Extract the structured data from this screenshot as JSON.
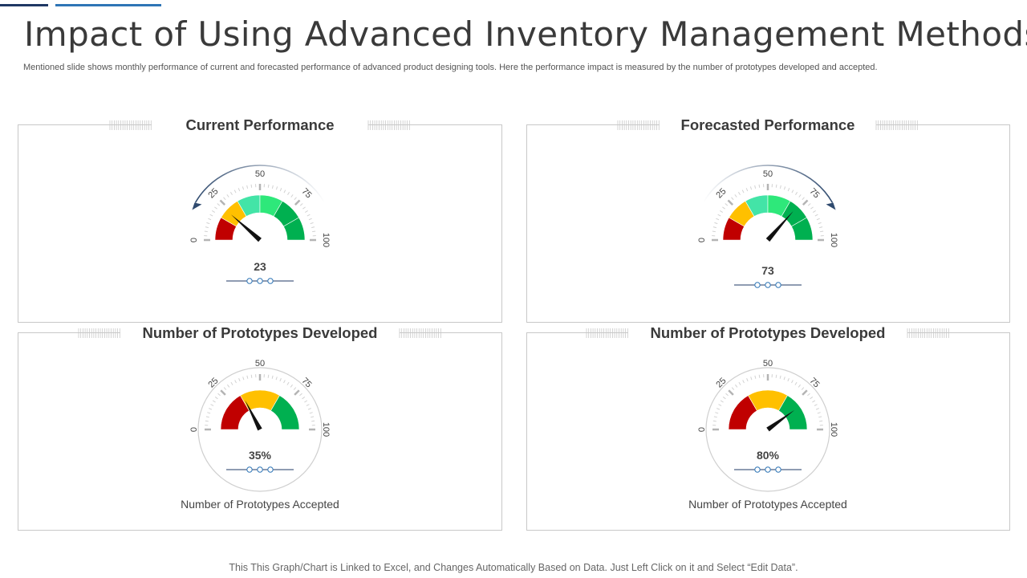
{
  "page": {
    "title": "Impact of Using Advanced Inventory Management Methods",
    "subtitle": "Mentioned slide shows monthly performance of current and forecasted performance of advanced product designing tools. Here the performance impact is measured by the number of prototypes  developed and accepted.",
    "footer": "This This Graph/Chart  is Linked to Excel, and Changes  Automatically Based on Data. Just Left Click on it and Select “Edit Data”.",
    "colors": {
      "accent_dark": "#1f3864",
      "accent_blue": "#2e75b6",
      "red": "#c00000",
      "yellow": "#ffc000",
      "green": "#00b050",
      "light_green": "#2ee87a",
      "mint": "#43e4a7",
      "needle": "#111111",
      "arrow": "#2f4a6e"
    }
  },
  "chart_data": [
    {
      "type": "gauge",
      "title": "Current Performance",
      "value": 23,
      "value_label": "23",
      "min": 0,
      "max": 100,
      "tick_labels": [
        "0",
        "25",
        "50",
        "75",
        "100"
      ],
      "bands": [
        {
          "from": 0,
          "to": 16.67,
          "color": "red"
        },
        {
          "from": 16.67,
          "to": 33.33,
          "color": "yellow"
        },
        {
          "from": 33.33,
          "to": 50,
          "color": "mint"
        },
        {
          "from": 50,
          "to": 66.67,
          "color": "light_green"
        },
        {
          "from": 66.67,
          "to": 83.33,
          "color": "green"
        },
        {
          "from": 83.33,
          "to": 100,
          "color": "green"
        }
      ],
      "trend": "decrease",
      "caption": ""
    },
    {
      "type": "gauge",
      "title": "Forecasted Performance",
      "value": 73,
      "value_label": "73",
      "min": 0,
      "max": 100,
      "tick_labels": [
        "0",
        "25",
        "50",
        "75",
        "100"
      ],
      "bands": [
        {
          "from": 0,
          "to": 16.67,
          "color": "red"
        },
        {
          "from": 16.67,
          "to": 33.33,
          "color": "yellow"
        },
        {
          "from": 33.33,
          "to": 50,
          "color": "mint"
        },
        {
          "from": 50,
          "to": 66.67,
          "color": "light_green"
        },
        {
          "from": 66.67,
          "to": 83.33,
          "color": "green"
        },
        {
          "from": 83.33,
          "to": 100,
          "color": "green"
        }
      ],
      "trend": "increase",
      "caption": ""
    },
    {
      "type": "gauge",
      "title": "Number of Prototypes Developed",
      "value": 35,
      "value_label": "35%",
      "min": 0,
      "max": 100,
      "tick_labels": [
        "0",
        "25",
        "50",
        "75",
        "100"
      ],
      "bands": [
        {
          "from": 0,
          "to": 33.33,
          "color": "red"
        },
        {
          "from": 33.33,
          "to": 66.67,
          "color": "yellow"
        },
        {
          "from": 66.67,
          "to": 100,
          "color": "green"
        }
      ],
      "trend": "",
      "caption": "Number of Prototypes Accepted"
    },
    {
      "type": "gauge",
      "title": "Number of Prototypes Developed",
      "value": 80,
      "value_label": "80%",
      "min": 0,
      "max": 100,
      "tick_labels": [
        "0",
        "25",
        "50",
        "75",
        "100"
      ],
      "bands": [
        {
          "from": 0,
          "to": 33.33,
          "color": "red"
        },
        {
          "from": 33.33,
          "to": 66.67,
          "color": "yellow"
        },
        {
          "from": 66.67,
          "to": 100,
          "color": "green"
        }
      ],
      "trend": "",
      "caption": "Number of Prototypes Accepted"
    }
  ]
}
